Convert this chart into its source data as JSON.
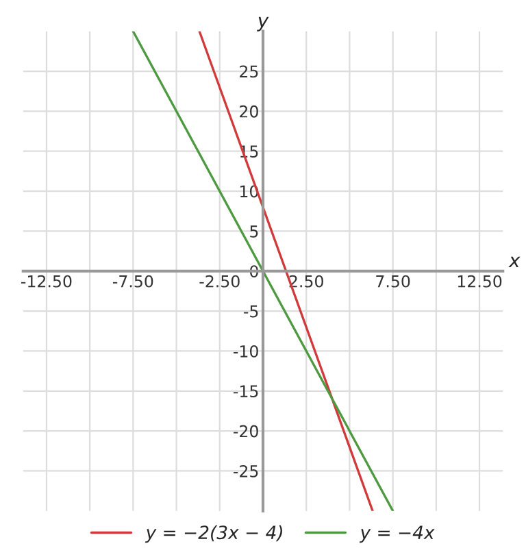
{
  "chart_data": {
    "type": "line",
    "xlabel": "x",
    "ylabel": "y",
    "series": [
      {
        "name": "y = −2(3x − 4)",
        "color": "#d03a3a",
        "x": [
          -3.67,
          6.33
        ],
        "values": [
          30,
          -30
        ]
      },
      {
        "name": "y = −4x",
        "color": "#4e9a40",
        "x": [
          -7.5,
          7.5
        ],
        "values": [
          30,
          -30
        ]
      }
    ],
    "xlim": [
      -13.85,
      13.85
    ],
    "ylim": [
      -30,
      30
    ],
    "xticks": [
      {
        "value": -12.5,
        "label": "-12.50"
      },
      {
        "value": -10,
        "label": null
      },
      {
        "value": -7.5,
        "label": "-7.50"
      },
      {
        "value": -5,
        "label": null
      },
      {
        "value": -2.5,
        "label": "-2.50"
      },
      {
        "value": 0,
        "label": null
      },
      {
        "value": 2.5,
        "label": "2.50"
      },
      {
        "value": 5,
        "label": null
      },
      {
        "value": 7.5,
        "label": "7.50"
      },
      {
        "value": 10,
        "label": null
      },
      {
        "value": 12.5,
        "label": "12.50"
      }
    ],
    "yticks": [
      -25,
      -20,
      -15,
      -10,
      -5,
      0,
      5,
      10,
      15,
      20,
      25
    ],
    "grid": true,
    "legend": "bottom"
  }
}
